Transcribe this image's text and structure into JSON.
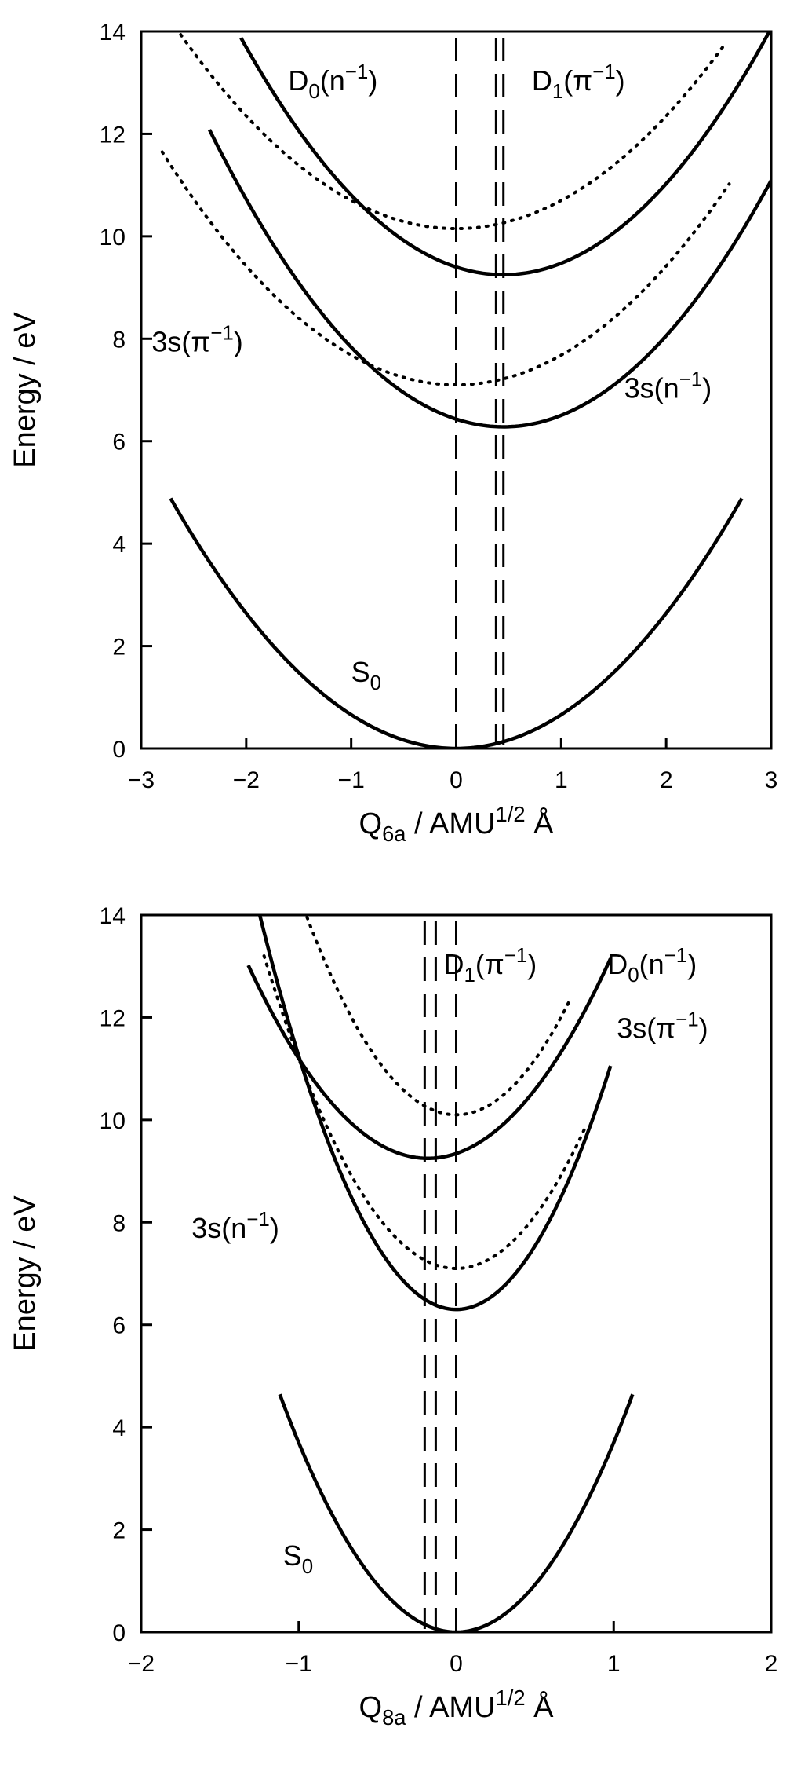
{
  "chart_data": [
    {
      "type": "line",
      "xlabel": {
        "main": "Q",
        "sub": "6a",
        "rest": " / AMU",
        "sup": "1/2",
        "tail": " Å"
      },
      "ylabel": "Energy / eV",
      "xlim": [
        -3,
        3
      ],
      "ylim": [
        0,
        14
      ],
      "xticks": [
        -3,
        -2,
        -1,
        0,
        1,
        2,
        3
      ],
      "yticks": [
        0,
        2,
        4,
        6,
        8,
        10,
        12,
        14
      ],
      "grid": false,
      "legend": "none",
      "series": [
        {
          "style": "solid",
          "color": "#000000",
          "center": 0.0,
          "min": 0.0,
          "k": 0.66,
          "range": [
            -2.72,
            2.72
          ]
        },
        {
          "style": "solid",
          "color": "#000000",
          "center": 0.45,
          "min": 6.28,
          "k": 0.74,
          "range": [
            -2.35,
            3.0
          ]
        },
        {
          "style": "solid",
          "color": "#000000",
          "center": 0.45,
          "min": 9.25,
          "k": 0.74,
          "range": [
            -2.05,
            3.0
          ]
        },
        {
          "style": "dotted",
          "color": "#000000",
          "center": 0.0,
          "min": 7.1,
          "k": 0.58,
          "range": [
            -2.8,
            2.6
          ]
        },
        {
          "style": "dotted",
          "color": "#000000",
          "center": 0.0,
          "min": 10.15,
          "k": 0.55,
          "range": [
            -2.9,
            2.55
          ]
        }
      ],
      "vlines": [
        {
          "x": 0.0,
          "style": "dashed"
        },
        {
          "x": 0.38,
          "style": "dashed"
        },
        {
          "x": 0.45,
          "style": "dashed"
        }
      ],
      "labels": [
        {
          "main": "D",
          "sub": "0",
          "rest": "(n",
          "sup": "−1",
          "tail": ")",
          "x": -1.6,
          "y": 12.85
        },
        {
          "main": "D",
          "sub": "1",
          "rest": "(π",
          "sup": "−1",
          "tail": ")",
          "x": 0.72,
          "y": 12.85
        },
        {
          "main": "3s",
          "sub": "",
          "rest": "(π",
          "sup": "−1",
          "tail": ")",
          "x": -2.9,
          "y": 7.75
        },
        {
          "main": "3s",
          "sub": "",
          "rest": "(n",
          "sup": "−1",
          "tail": ")",
          "x": 1.6,
          "y": 6.85
        },
        {
          "main": "S",
          "sub": "0",
          "rest": "",
          "sup": "",
          "tail": "",
          "x": -1.0,
          "y": 1.3
        }
      ]
    },
    {
      "type": "line",
      "xlabel": {
        "main": "Q",
        "sub": "8a",
        "rest": " / AMU",
        "sup": "1/2",
        "tail": " Å"
      },
      "ylabel": "Energy / eV",
      "xlim": [
        -2,
        2
      ],
      "ylim": [
        0,
        14
      ],
      "xticks": [
        -2,
        -1,
        0,
        1,
        2
      ],
      "yticks": [
        0,
        2,
        4,
        6,
        8,
        10,
        12,
        14
      ],
      "grid": false,
      "legend": "none",
      "series": [
        {
          "style": "solid",
          "color": "#000000",
          "center": 0.0,
          "min": 0.0,
          "k": 3.7,
          "range": [
            -1.12,
            1.12
          ]
        },
        {
          "style": "solid",
          "color": "#000000",
          "center": 0.0,
          "min": 6.3,
          "k": 4.95,
          "range": [
            -1.27,
            0.98
          ]
        },
        {
          "style": "solid",
          "color": "#000000",
          "center": -0.18,
          "min": 9.25,
          "k": 2.9,
          "range": [
            -1.32,
            0.98
          ]
        },
        {
          "style": "dotted",
          "color": "#000000",
          "center": 0.0,
          "min": 7.1,
          "k": 4.1,
          "range": [
            -1.22,
            0.82
          ]
        },
        {
          "style": "dotted",
          "color": "#000000",
          "center": 0.0,
          "min": 10.1,
          "k": 4.3,
          "range": [
            -1.04,
            0.72
          ]
        }
      ],
      "vlines": [
        {
          "x": 0.0,
          "style": "dashed"
        },
        {
          "x": -0.13,
          "style": "dashed"
        },
        {
          "x": -0.2,
          "style": "dashed"
        }
      ],
      "labels": [
        {
          "main": "D",
          "sub": "1",
          "rest": "(π",
          "sup": "−1",
          "tail": ")",
          "x": -0.08,
          "y": 12.85
        },
        {
          "main": "D",
          "sub": "0",
          "rest": "(n",
          "sup": "−1",
          "tail": ")",
          "x": 0.96,
          "y": 12.85
        },
        {
          "main": "3s",
          "sub": "",
          "rest": "(π",
          "sup": "−1",
          "tail": ")",
          "x": 1.02,
          "y": 11.6
        },
        {
          "main": "3s",
          "sub": "",
          "rest": "(n",
          "sup": "−1",
          "tail": ")",
          "x": -1.68,
          "y": 7.7
        },
        {
          "main": "S",
          "sub": "0",
          "rest": "",
          "sup": "",
          "tail": "",
          "x": -1.1,
          "y": 1.3
        }
      ]
    }
  ]
}
